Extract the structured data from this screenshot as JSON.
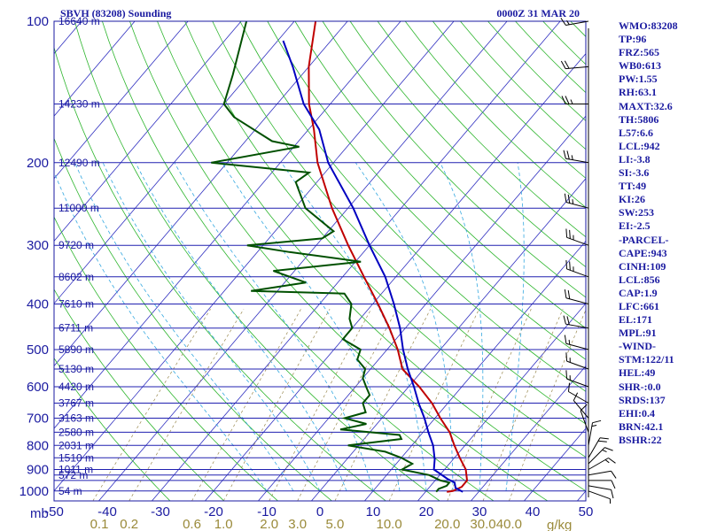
{
  "header": {
    "station": "SBVH (83208) Sounding",
    "datetime": "0000Z 31 MAR 20"
  },
  "colors": {
    "isobar": "#2020b0",
    "isotherm": "#3030c0",
    "dry_adiabat": "#2db52d",
    "moist_adiabat": "#35a8e0",
    "mixing_ratio": "#9a8a50",
    "temperature": "#c00000",
    "dewpoint": "#005000",
    "parcel": "#0000c0",
    "wind": "#000000",
    "frame": "#1a1aa0"
  },
  "axis_labels": {
    "pressure_unit": "mb",
    "mixing_unit": "g/kg"
  },
  "chart_data": {
    "type": "line",
    "chart_kind": "skew-T log-P sounding",
    "pressure_levels": [
      100,
      200,
      300,
      400,
      500,
      600,
      700,
      800,
      900,
      1000
    ],
    "isobar_lines": [
      100,
      150,
      200,
      250,
      300,
      350,
      400,
      450,
      500,
      550,
      600,
      650,
      700,
      750,
      800,
      850,
      900,
      925,
      950,
      1000
    ],
    "pressure_range": [
      1000,
      100
    ],
    "temperature_range": [
      -50,
      50
    ],
    "temperature_ticks": [
      "-50",
      "-40",
      "-30",
      "-20",
      "-10",
      "0",
      "10",
      "20",
      "30",
      "40",
      "50"
    ],
    "height_labels": [
      {
        "p": 100,
        "label": "16640 m"
      },
      {
        "p": 150,
        "label": "14230 m"
      },
      {
        "p": 200,
        "label": "12490 m"
      },
      {
        "p": 250,
        "label": "11000 m"
      },
      {
        "p": 300,
        "label": "9720 m"
      },
      {
        "p": 350,
        "label": "8602 m"
      },
      {
        "p": 400,
        "label": "7610 m"
      },
      {
        "p": 450,
        "label": "6711 m"
      },
      {
        "p": 500,
        "label": "5890 m"
      },
      {
        "p": 550,
        "label": "5130 m"
      },
      {
        "p": 600,
        "label": "4420 m"
      },
      {
        "p": 650,
        "label": "3767 m"
      },
      {
        "p": 700,
        "label": "3163 m"
      },
      {
        "p": 750,
        "label": "2580 m"
      },
      {
        "p": 800,
        "label": "2031 m"
      },
      {
        "p": 850,
        "label": "1510 m"
      },
      {
        "p": 900,
        "label": "1011 m"
      },
      {
        "p": 925,
        "label": "572 m"
      },
      {
        "p": 1000,
        "label": "54 m"
      }
    ],
    "mixing_ratio_labels": [
      "0.1",
      "0.2",
      "0.6",
      "1.0",
      "2.0",
      "3.0",
      "5.0",
      "10.0",
      "20.0",
      "30.0",
      "40.0"
    ],
    "mixing_ratio_values": [
      0.1,
      0.2,
      0.6,
      1.0,
      2.0,
      3.0,
      5.0,
      10.0,
      20.0,
      30.0,
      40.0
    ],
    "series": [
      {
        "role": "temperature",
        "points": [
          [
            1004,
            24
          ],
          [
            1000,
            25
          ],
          [
            980,
            26
          ],
          [
            950,
            26
          ],
          [
            925,
            25
          ],
          [
            900,
            24
          ],
          [
            850,
            21
          ],
          [
            800,
            18
          ],
          [
            750,
            15
          ],
          [
            700,
            11
          ],
          [
            650,
            7
          ],
          [
            600,
            2
          ],
          [
            550,
            -4
          ],
          [
            500,
            -8
          ],
          [
            450,
            -13
          ],
          [
            400,
            -19
          ],
          [
            350,
            -26
          ],
          [
            300,
            -34
          ],
          [
            250,
            -43
          ],
          [
            200,
            -53
          ],
          [
            170,
            -59
          ],
          [
            150,
            -64
          ],
          [
            125,
            -70
          ],
          [
            100,
            -76
          ],
          [
            85,
            -79
          ]
        ]
      },
      {
        "role": "dewpoint",
        "points": [
          [
            1004,
            22
          ],
          [
            990,
            22
          ],
          [
            975,
            23
          ],
          [
            960,
            23
          ],
          [
            950,
            21
          ],
          [
            925,
            18
          ],
          [
            900,
            12
          ],
          [
            875,
            13
          ],
          [
            850,
            10
          ],
          [
            825,
            6
          ],
          [
            800,
            -2
          ],
          [
            775,
            7
          ],
          [
            760,
            6
          ],
          [
            740,
            -6
          ],
          [
            720,
            -2
          ],
          [
            700,
            -7
          ],
          [
            680,
            -4
          ],
          [
            650,
            -6
          ],
          [
            625,
            -6
          ],
          [
            600,
            -8
          ],
          [
            575,
            -10
          ],
          [
            550,
            -11
          ],
          [
            525,
            -14
          ],
          [
            500,
            -15
          ],
          [
            475,
            -20
          ],
          [
            450,
            -20
          ],
          [
            430,
            -22
          ],
          [
            400,
            -24
          ],
          [
            380,
            -27
          ],
          [
            375,
            -45
          ],
          [
            360,
            -36
          ],
          [
            340,
            -44
          ],
          [
            325,
            -29
          ],
          [
            310,
            -44
          ],
          [
            300,
            -53
          ],
          [
            290,
            -40
          ],
          [
            280,
            -39
          ],
          [
            250,
            -48
          ],
          [
            220,
            -54
          ],
          [
            210,
            -53
          ],
          [
            200,
            -73
          ],
          [
            185,
            -59
          ],
          [
            180,
            -65
          ],
          [
            160,
            -76
          ],
          [
            150,
            -80
          ],
          [
            130,
            -83
          ],
          [
            100,
            -89
          ],
          [
            88,
            -94
          ]
        ]
      },
      {
        "role": "parcel",
        "points": [
          [
            1004,
            27
          ],
          [
            985,
            25
          ],
          [
            960,
            24
          ],
          [
            942,
            22
          ],
          [
            900,
            18
          ],
          [
            856,
            16.5
          ],
          [
            800,
            14
          ],
          [
            750,
            11
          ],
          [
            700,
            8
          ],
          [
            650,
            4.5
          ],
          [
            600,
            1
          ],
          [
            550,
            -3
          ],
          [
            500,
            -7
          ],
          [
            450,
            -11
          ],
          [
            400,
            -16
          ],
          [
            350,
            -22
          ],
          [
            300,
            -30
          ],
          [
            250,
            -39
          ],
          [
            200,
            -51
          ],
          [
            170,
            -58
          ],
          [
            150,
            -65
          ],
          [
            125,
            -73
          ],
          [
            110,
            -79
          ]
        ]
      }
    ],
    "wind_barbs": [
      {
        "p": 1000,
        "dir": 110,
        "kt": 5
      },
      {
        "p": 975,
        "dir": 100,
        "kt": 10
      },
      {
        "p": 950,
        "dir": 90,
        "kt": 10
      },
      {
        "p": 925,
        "dir": 80,
        "kt": 10
      },
      {
        "p": 900,
        "dir": 60,
        "kt": 15
      },
      {
        "p": 875,
        "dir": 45,
        "kt": 15
      },
      {
        "p": 850,
        "dir": 30,
        "kt": 20
      },
      {
        "p": 800,
        "dir": 10,
        "kt": 15
      },
      {
        "p": 750,
        "dir": 340,
        "kt": 10
      },
      {
        "p": 700,
        "dir": 320,
        "kt": 10
      },
      {
        "p": 650,
        "dir": 300,
        "kt": 10
      },
      {
        "p": 600,
        "dir": 290,
        "kt": 15
      },
      {
        "p": 550,
        "dir": 290,
        "kt": 15
      },
      {
        "p": 500,
        "dir": 285,
        "kt": 15
      },
      {
        "p": 450,
        "dir": 280,
        "kt": 20
      },
      {
        "p": 400,
        "dir": 285,
        "kt": 20
      },
      {
        "p": 350,
        "dir": 290,
        "kt": 25
      },
      {
        "p": 300,
        "dir": 290,
        "kt": 25
      },
      {
        "p": 250,
        "dir": 285,
        "kt": 25
      },
      {
        "p": 200,
        "dir": 280,
        "kt": 25
      },
      {
        "p": 150,
        "dir": 270,
        "kt": 25
      },
      {
        "p": 125,
        "dir": 265,
        "kt": 20
      },
      {
        "p": 100,
        "dir": 260,
        "kt": 15
      }
    ]
  },
  "indices": [
    "WMO:83208",
    "TP:96",
    "FRZ:565",
    "WB0:613",
    "PW:1.55",
    "RH:63.1",
    "MAXT:32.6",
    "TH:5806",
    "L57:6.6",
    "LCL:942",
    "LI:-3.8",
    "SI:-3.6",
    "TT:49",
    "KI:26",
    "SW:253",
    "EI:-2.5",
    "-PARCEL-",
    "CAPE:943",
    "CINH:109",
    "LCL:856",
    "CAP:1.9",
    "LFC:661",
    "EL:171",
    "MPL:91",
    "-WIND-",
    "STM:122/11",
    "HEL:49",
    "SHR-:0.0",
    "SRDS:137",
    "EHI:0.4",
    "BRN:42.1",
    "BSHR:22"
  ]
}
